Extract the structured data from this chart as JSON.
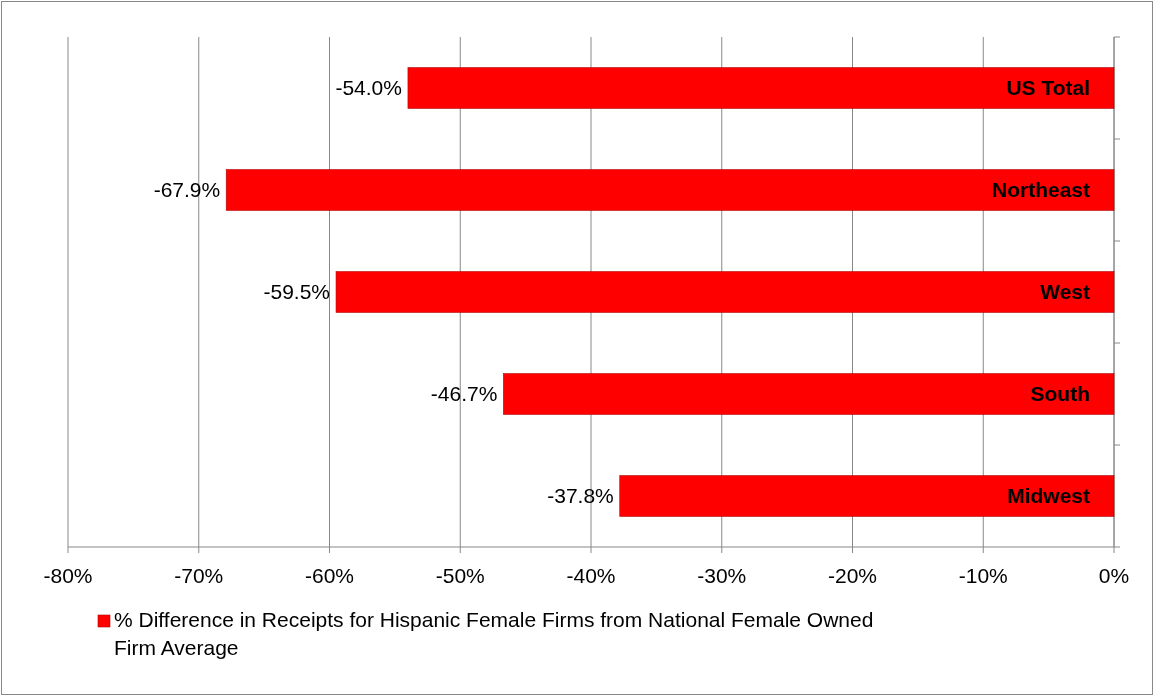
{
  "chart_data": {
    "type": "bar",
    "orientation": "horizontal",
    "categories": [
      "US Total",
      "Northeast",
      "West",
      "South",
      "Midwest"
    ],
    "series": [
      {
        "name": "% Difference in Receipts for Hispanic Female Firms from National Female Owned Firm Average",
        "color": "#ff0000",
        "values": [
          -54.0,
          -67.9,
          -59.5,
          -46.7,
          -37.8
        ],
        "value_labels": [
          "-54.0%",
          "-67.9%",
          "-59.5%",
          "-46.7%",
          "-37.8%"
        ]
      }
    ],
    "xlim": [
      -80,
      0
    ],
    "xticks": [
      {
        "value": -80,
        "label": "-80%"
      },
      {
        "value": -70,
        "label": "-70%"
      },
      {
        "value": -60,
        "label": "-60%"
      },
      {
        "value": -50,
        "label": "-50%"
      },
      {
        "value": -40,
        "label": "-40%"
      },
      {
        "value": -30,
        "label": "-30%"
      },
      {
        "value": -20,
        "label": "-20%"
      },
      {
        "value": -10,
        "label": "-10%"
      },
      {
        "value": 0,
        "label": "0%"
      }
    ],
    "grid": "x",
    "legend": "bottom"
  }
}
